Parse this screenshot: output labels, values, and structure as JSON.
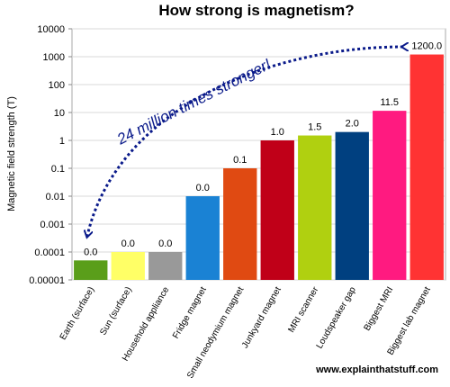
{
  "chart_data": {
    "type": "bar",
    "title": "How strong is magnetism?",
    "y_label": "Magnetic field strength (T)",
    "annotation": "24 million times stronger!",
    "source": "www.explainthatstuff.com",
    "log_scale": true,
    "grid": true,
    "categories": [
      "Earth (surface)",
      "Sun (surface)",
      "Household appliance",
      "Fridge magnet",
      "Small neodymium magnet",
      "Junkyard magnet",
      "MRI scanner",
      "Loudspeaker gap",
      "Biggest MRI",
      "Biggest lab magnet"
    ],
    "values": [
      5e-05,
      0.0001,
      0.0001,
      0.01,
      0.1,
      1,
      1.5,
      2,
      11.5,
      1200
    ],
    "value_labels": [
      "0.0",
      "0.0",
      "0.0",
      "0.0",
      "0.1",
      "1.0",
      "1.5",
      "2.0",
      "11.5",
      "1200.0"
    ],
    "colors": [
      "#5a9e1a",
      "#ffff66",
      "#999999",
      "#1a82d4",
      "#e04a12",
      "#c00018",
      "#b0d010",
      "#004080",
      "#ff1a80",
      "#ff3333"
    ],
    "ylim": [
      1e-05,
      10000
    ],
    "yticks": [
      1e-05,
      0.0001,
      0.001,
      0.01,
      0.1,
      1,
      10,
      100,
      1000,
      10000
    ]
  }
}
